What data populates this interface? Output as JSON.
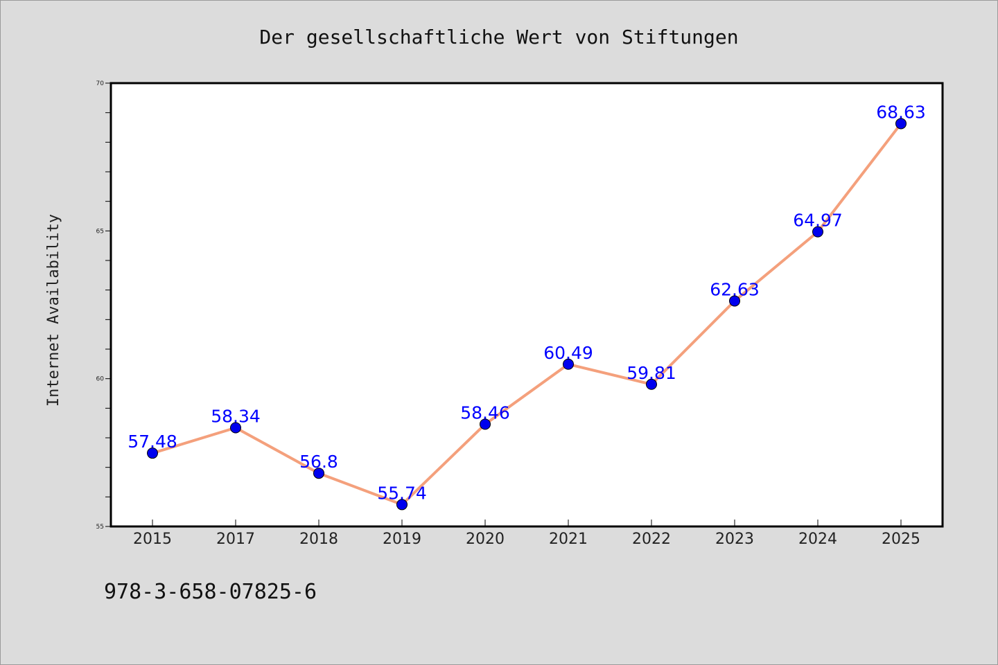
{
  "chart_data": {
    "type": "line",
    "title": "Der gesellschaftliche Wert von Stiftungen",
    "xlabel": "",
    "ylabel": "Internet Availability",
    "categories": [
      "2015",
      "2017",
      "2018",
      "2019",
      "2020",
      "2021",
      "2022",
      "2023",
      "2024",
      "2025"
    ],
    "series": [
      {
        "values": [
          57.48,
          58.34,
          56.8,
          55.74,
          58.46,
          60.49,
          59.81,
          62.63,
          64.97,
          68.63
        ],
        "labels": [
          "57.48",
          "58.34",
          "56.8",
          "55.74",
          "58.46",
          "60.49",
          "59.81",
          "62.63",
          "64.97",
          "68.63"
        ],
        "line_color": "#f4a07c",
        "marker_color": "#0000ee"
      }
    ],
    "ylim": [
      55,
      70
    ],
    "yticks": [
      "55",
      "60",
      "65",
      "70"
    ],
    "grid": false,
    "legend": "none"
  },
  "footer": {
    "isbn": "978-3-658-07825-6"
  }
}
